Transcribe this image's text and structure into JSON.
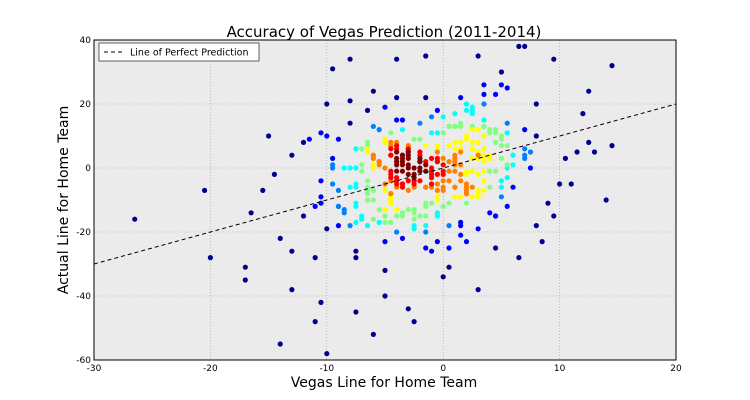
{
  "chart_data": {
    "type": "scatter",
    "title": "Accuracy of Vegas Prediction (2011-2014)",
    "xlabel": "Vegas Line for Home Team",
    "ylabel": "Actual Line for Home Team",
    "xlim": [
      -30,
      20
    ],
    "ylim": [
      -60,
      40
    ],
    "xticks": [
      -30,
      -20,
      -10,
      0,
      10,
      20
    ],
    "yticks": [
      -60,
      -40,
      -20,
      0,
      20,
      40
    ],
    "grid": true,
    "legend": {
      "placement": "top-left",
      "entries": [
        "Line of Perfect Prediction"
      ]
    },
    "reference_line": {
      "name": "Line of Perfect Prediction",
      "slope": 1,
      "intercept": 0,
      "style": "dashed",
      "color": "#000000"
    },
    "colormap": [
      "#00008f",
      "#0000ff",
      "#0080ff",
      "#00ffff",
      "#80ff80",
      "#ffff00",
      "#ff8000",
      "#ff0000",
      "#800000"
    ],
    "background": "#ebebeb",
    "clusters": [
      {
        "cx": -4,
        "cy": -3,
        "n": 230,
        "sx": 3.2,
        "sy": 11
      },
      {
        "cx": 3,
        "cy": 3,
        "n": 130,
        "sx": 2.4,
        "sy": 10
      }
    ],
    "sparse": [
      {
        "x": -26.5,
        "y": -16
      },
      {
        "x": -20.5,
        "y": -7
      },
      {
        "x": -20,
        "y": -28
      },
      {
        "x": -17,
        "y": -31
      },
      {
        "x": -17,
        "y": -35
      },
      {
        "x": -16.5,
        "y": -14
      },
      {
        "x": -15.5,
        "y": -7
      },
      {
        "x": -14.5,
        "y": -2
      },
      {
        "x": -14,
        "y": -22
      },
      {
        "x": -14,
        "y": -55
      },
      {
        "x": -13,
        "y": -38
      },
      {
        "x": -13,
        "y": -26
      },
      {
        "x": -12,
        "y": -15
      },
      {
        "x": -11,
        "y": -48
      },
      {
        "x": -10.5,
        "y": -42
      },
      {
        "x": -10,
        "y": -58
      },
      {
        "x": -10,
        "y": 20
      },
      {
        "x": -9.5,
        "y": 31
      },
      {
        "x": -8,
        "y": 34
      },
      {
        "x": -7.5,
        "y": -45
      },
      {
        "x": -6,
        "y": -52
      },
      {
        "x": -5,
        "y": -40
      },
      {
        "x": -4,
        "y": 34
      },
      {
        "x": -2.5,
        "y": -48
      },
      {
        "x": -3,
        "y": -44
      },
      {
        "x": -1.5,
        "y": 35
      },
      {
        "x": 0,
        "y": -34
      },
      {
        "x": 0.5,
        "y": -25
      },
      {
        "x": 2,
        "y": 20
      },
      {
        "x": 3,
        "y": -38
      },
      {
        "x": 3,
        "y": 35
      },
      {
        "x": 6.5,
        "y": 38
      },
      {
        "x": 7,
        "y": 38
      },
      {
        "x": 6.5,
        "y": -28
      },
      {
        "x": 8,
        "y": -18
      },
      {
        "x": 9,
        "y": -11
      },
      {
        "x": 9.5,
        "y": -15
      },
      {
        "x": 9.5,
        "y": 34
      },
      {
        "x": 10.5,
        "y": 3
      },
      {
        "x": 11,
        "y": -5
      },
      {
        "x": 11.5,
        "y": 5
      },
      {
        "x": 12,
        "y": 17
      },
      {
        "x": 12.5,
        "y": 8
      },
      {
        "x": 12.5,
        "y": 24
      },
      {
        "x": 13,
        "y": 5
      },
      {
        "x": 14,
        "y": -10
      },
      {
        "x": 14.5,
        "y": 7
      },
      {
        "x": 14.5,
        "y": 32
      },
      {
        "x": 10,
        "y": -5
      },
      {
        "x": 8,
        "y": 10
      },
      {
        "x": -12,
        "y": 8
      },
      {
        "x": -13,
        "y": 4
      },
      {
        "x": -11,
        "y": -28
      },
      {
        "x": 5,
        "y": 30
      }
    ]
  }
}
